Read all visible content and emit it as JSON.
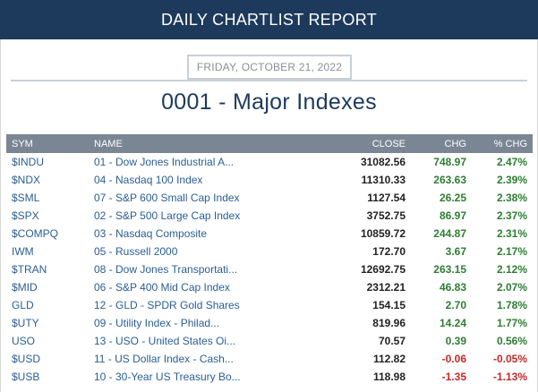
{
  "header": {
    "title": "DAILY CHARTLIST REPORT"
  },
  "report": {
    "date": "FRIDAY, OCTOBER 21, 2022",
    "title": "0001 - Major Indexes"
  },
  "table": {
    "columns": [
      "SYM",
      "NAME",
      "CLOSE",
      "CHG",
      "% CHG"
    ],
    "rows": [
      {
        "sym": "$INDU",
        "name": "01 - Dow Jones Industrial A...",
        "close": "31082.56",
        "chg": "748.97",
        "pct": "2.47%",
        "dir": "pos"
      },
      {
        "sym": "$NDX",
        "name": "04 - Nasdaq 100 Index",
        "close": "11310.33",
        "chg": "263.63",
        "pct": "2.39%",
        "dir": "pos"
      },
      {
        "sym": "$SML",
        "name": "07 - S&P 600 Small Cap Index",
        "close": "1127.54",
        "chg": "26.25",
        "pct": "2.38%",
        "dir": "pos"
      },
      {
        "sym": "$SPX",
        "name": "02 - S&P 500 Large Cap Index",
        "close": "3752.75",
        "chg": "86.97",
        "pct": "2.37%",
        "dir": "pos"
      },
      {
        "sym": "$COMPQ",
        "name": "03 - Nasdaq Composite",
        "close": "10859.72",
        "chg": "244.87",
        "pct": "2.31%",
        "dir": "pos"
      },
      {
        "sym": "IWM",
        "name": "05 - Russell 2000",
        "close": "172.70",
        "chg": "3.67",
        "pct": "2.17%",
        "dir": "pos"
      },
      {
        "sym": "$TRAN",
        "name": "08 - Dow Jones Transportati...",
        "close": "12692.75",
        "chg": "263.15",
        "pct": "2.12%",
        "dir": "pos"
      },
      {
        "sym": "$MID",
        "name": "06 - S&P 400 Mid Cap Index",
        "close": "2312.21",
        "chg": "46.83",
        "pct": "2.07%",
        "dir": "pos"
      },
      {
        "sym": "GLD",
        "name": "12 - GLD - SPDR Gold Shares",
        "close": "154.15",
        "chg": "2.70",
        "pct": "1.78%",
        "dir": "pos"
      },
      {
        "sym": "$UTY",
        "name": "09 - Utility Index - Philad...",
        "close": "819.96",
        "chg": "14.24",
        "pct": "1.77%",
        "dir": "pos"
      },
      {
        "sym": "USO",
        "name": "13 - USO - United States Oi...",
        "close": "70.57",
        "chg": "0.39",
        "pct": "0.56%",
        "dir": "pos"
      },
      {
        "sym": "$USD",
        "name": "11 - US Dollar Index - Cash...",
        "close": "112.82",
        "chg": "-0.06",
        "pct": "-0.05%",
        "dir": "neg"
      },
      {
        "sym": "$USB",
        "name": "10 - 30-Year US Treasury Bo...",
        "close": "118.98",
        "chg": "-1.35",
        "pct": "-1.13%",
        "dir": "neg"
      }
    ]
  },
  "colors": {
    "header_bg": "#1d3a5c",
    "table_header_bg": "#7b8694",
    "link": "#2a5e93",
    "positive": "#2e7d32",
    "negative": "#c62828"
  }
}
